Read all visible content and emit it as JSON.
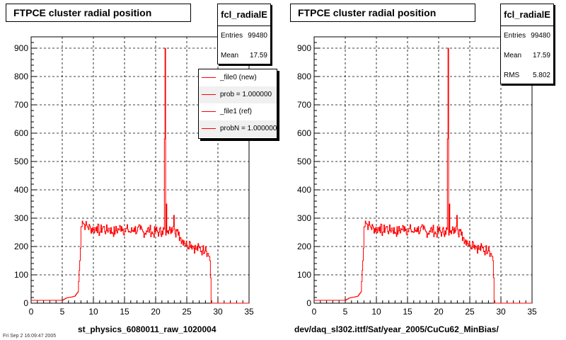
{
  "panels": [
    {
      "title": "FTPCE cluster radial position",
      "stats": {
        "name": "fcl_radialE",
        "rows": [
          {
            "label": "Entries",
            "value": "99480"
          },
          {
            "label": "Mean",
            "value": "17.59"
          }
        ]
      },
      "legend": [
        {
          "label": "_file0 (new)"
        },
        {
          "label": "prob = 1.000000"
        },
        {
          "label": "_file1 (ref)"
        },
        {
          "label": "probN = 1.000000"
        }
      ],
      "caption": "st_physics_6080011_raw_1020004"
    },
    {
      "title": "FTPCE cluster radial position",
      "stats": {
        "name": "fcl_radialE",
        "rows": [
          {
            "label": "Entries",
            "value": "99480"
          },
          {
            "label": "Mean",
            "value": "17.59"
          },
          {
            "label": "RMS",
            "value": "5.802"
          }
        ]
      },
      "caption": "dev/daq_sl302.ittf/Sat/year_2005/CuCu62_MinBias/"
    }
  ],
  "footnote": "Fri Sep 2 16:09:47 2005",
  "chart_data": [
    {
      "type": "line",
      "style": "histogram-step",
      "color": "#ff0000",
      "xlim": [
        0,
        35
      ],
      "ylim": [
        0,
        940
      ],
      "xticks": [
        "0",
        "5",
        "10",
        "15",
        "20",
        "25",
        "30",
        "35"
      ],
      "yticks": [
        "0",
        "100",
        "200",
        "300",
        "400",
        "500",
        "600",
        "700",
        "800",
        "900"
      ],
      "grid": true,
      "series": [
        {
          "x": [
            0,
            1,
            2,
            3,
            4,
            5,
            5.6,
            6,
            6.5,
            7,
            7.5,
            7.8,
            8,
            8.2,
            8.4,
            8.7,
            9,
            9.5,
            10,
            10.5,
            11,
            11.5,
            12,
            12.5,
            13,
            13.5,
            14,
            14.5,
            15,
            15.5,
            16,
            16.5,
            17,
            17.5,
            18,
            18.5,
            19,
            19.5,
            20,
            20.5,
            21,
            21.3,
            21.5,
            21.6,
            21.7,
            21.8,
            22,
            22.3,
            22.6,
            22.9,
            23.1,
            23.3,
            23.6,
            24,
            24.5,
            25,
            25.5,
            26,
            26.5,
            27,
            27.5,
            28,
            28.3,
            28.6,
            28.7,
            28.8,
            28.9,
            29,
            30,
            35
          ],
          "y": [
            10,
            10,
            10,
            10,
            10,
            10,
            18,
            20,
            22,
            25,
            40,
            150,
            270,
            290,
            280,
            275,
            270,
            265,
            260,
            270,
            250,
            270,
            255,
            265,
            250,
            255,
            260,
            270,
            255,
            260,
            250,
            265,
            255,
            260,
            250,
            255,
            260,
            245,
            255,
            250,
            255,
            260,
            900,
            240,
            350,
            250,
            245,
            260,
            250,
            310,
            245,
            260,
            240,
            230,
            220,
            205,
            215,
            200,
            190,
            195,
            185,
            200,
            175,
            165,
            150,
            90,
            0,
            0,
            0,
            0
          ]
        }
      ]
    },
    {
      "type": "line",
      "style": "histogram-step",
      "color": "#ff0000",
      "xlim": [
        0,
        35
      ],
      "ylim": [
        0,
        940
      ],
      "xticks": [
        "0",
        "5",
        "10",
        "15",
        "20",
        "25",
        "30",
        "35"
      ],
      "yticks": [
        "0",
        "100",
        "200",
        "300",
        "400",
        "500",
        "600",
        "700",
        "800",
        "900"
      ],
      "grid": true,
      "series": [
        {
          "x": [
            0,
            1,
            2,
            3,
            4,
            5,
            5.6,
            6,
            6.5,
            7,
            7.5,
            7.8,
            8,
            8.2,
            8.4,
            8.7,
            9,
            9.5,
            10,
            10.5,
            11,
            11.5,
            12,
            12.5,
            13,
            13.5,
            14,
            14.5,
            15,
            15.5,
            16,
            16.5,
            17,
            17.5,
            18,
            18.5,
            19,
            19.5,
            20,
            20.5,
            21,
            21.3,
            21.5,
            21.6,
            21.7,
            21.8,
            22,
            22.3,
            22.6,
            22.9,
            23.1,
            23.3,
            23.6,
            24,
            24.5,
            25,
            25.5,
            26,
            26.5,
            27,
            27.5,
            28,
            28.3,
            28.6,
            28.7,
            28.8,
            28.9,
            29,
            30,
            35
          ],
          "y": [
            10,
            10,
            10,
            10,
            10,
            10,
            18,
            20,
            22,
            25,
            40,
            150,
            270,
            290,
            280,
            275,
            270,
            265,
            260,
            270,
            250,
            270,
            255,
            265,
            250,
            255,
            260,
            270,
            255,
            260,
            250,
            265,
            255,
            260,
            250,
            255,
            260,
            245,
            255,
            250,
            255,
            260,
            900,
            240,
            350,
            250,
            245,
            260,
            250,
            310,
            245,
            260,
            240,
            230,
            220,
            205,
            215,
            200,
            190,
            195,
            185,
            200,
            175,
            165,
            150,
            90,
            0,
            0,
            0,
            0
          ]
        }
      ]
    }
  ]
}
